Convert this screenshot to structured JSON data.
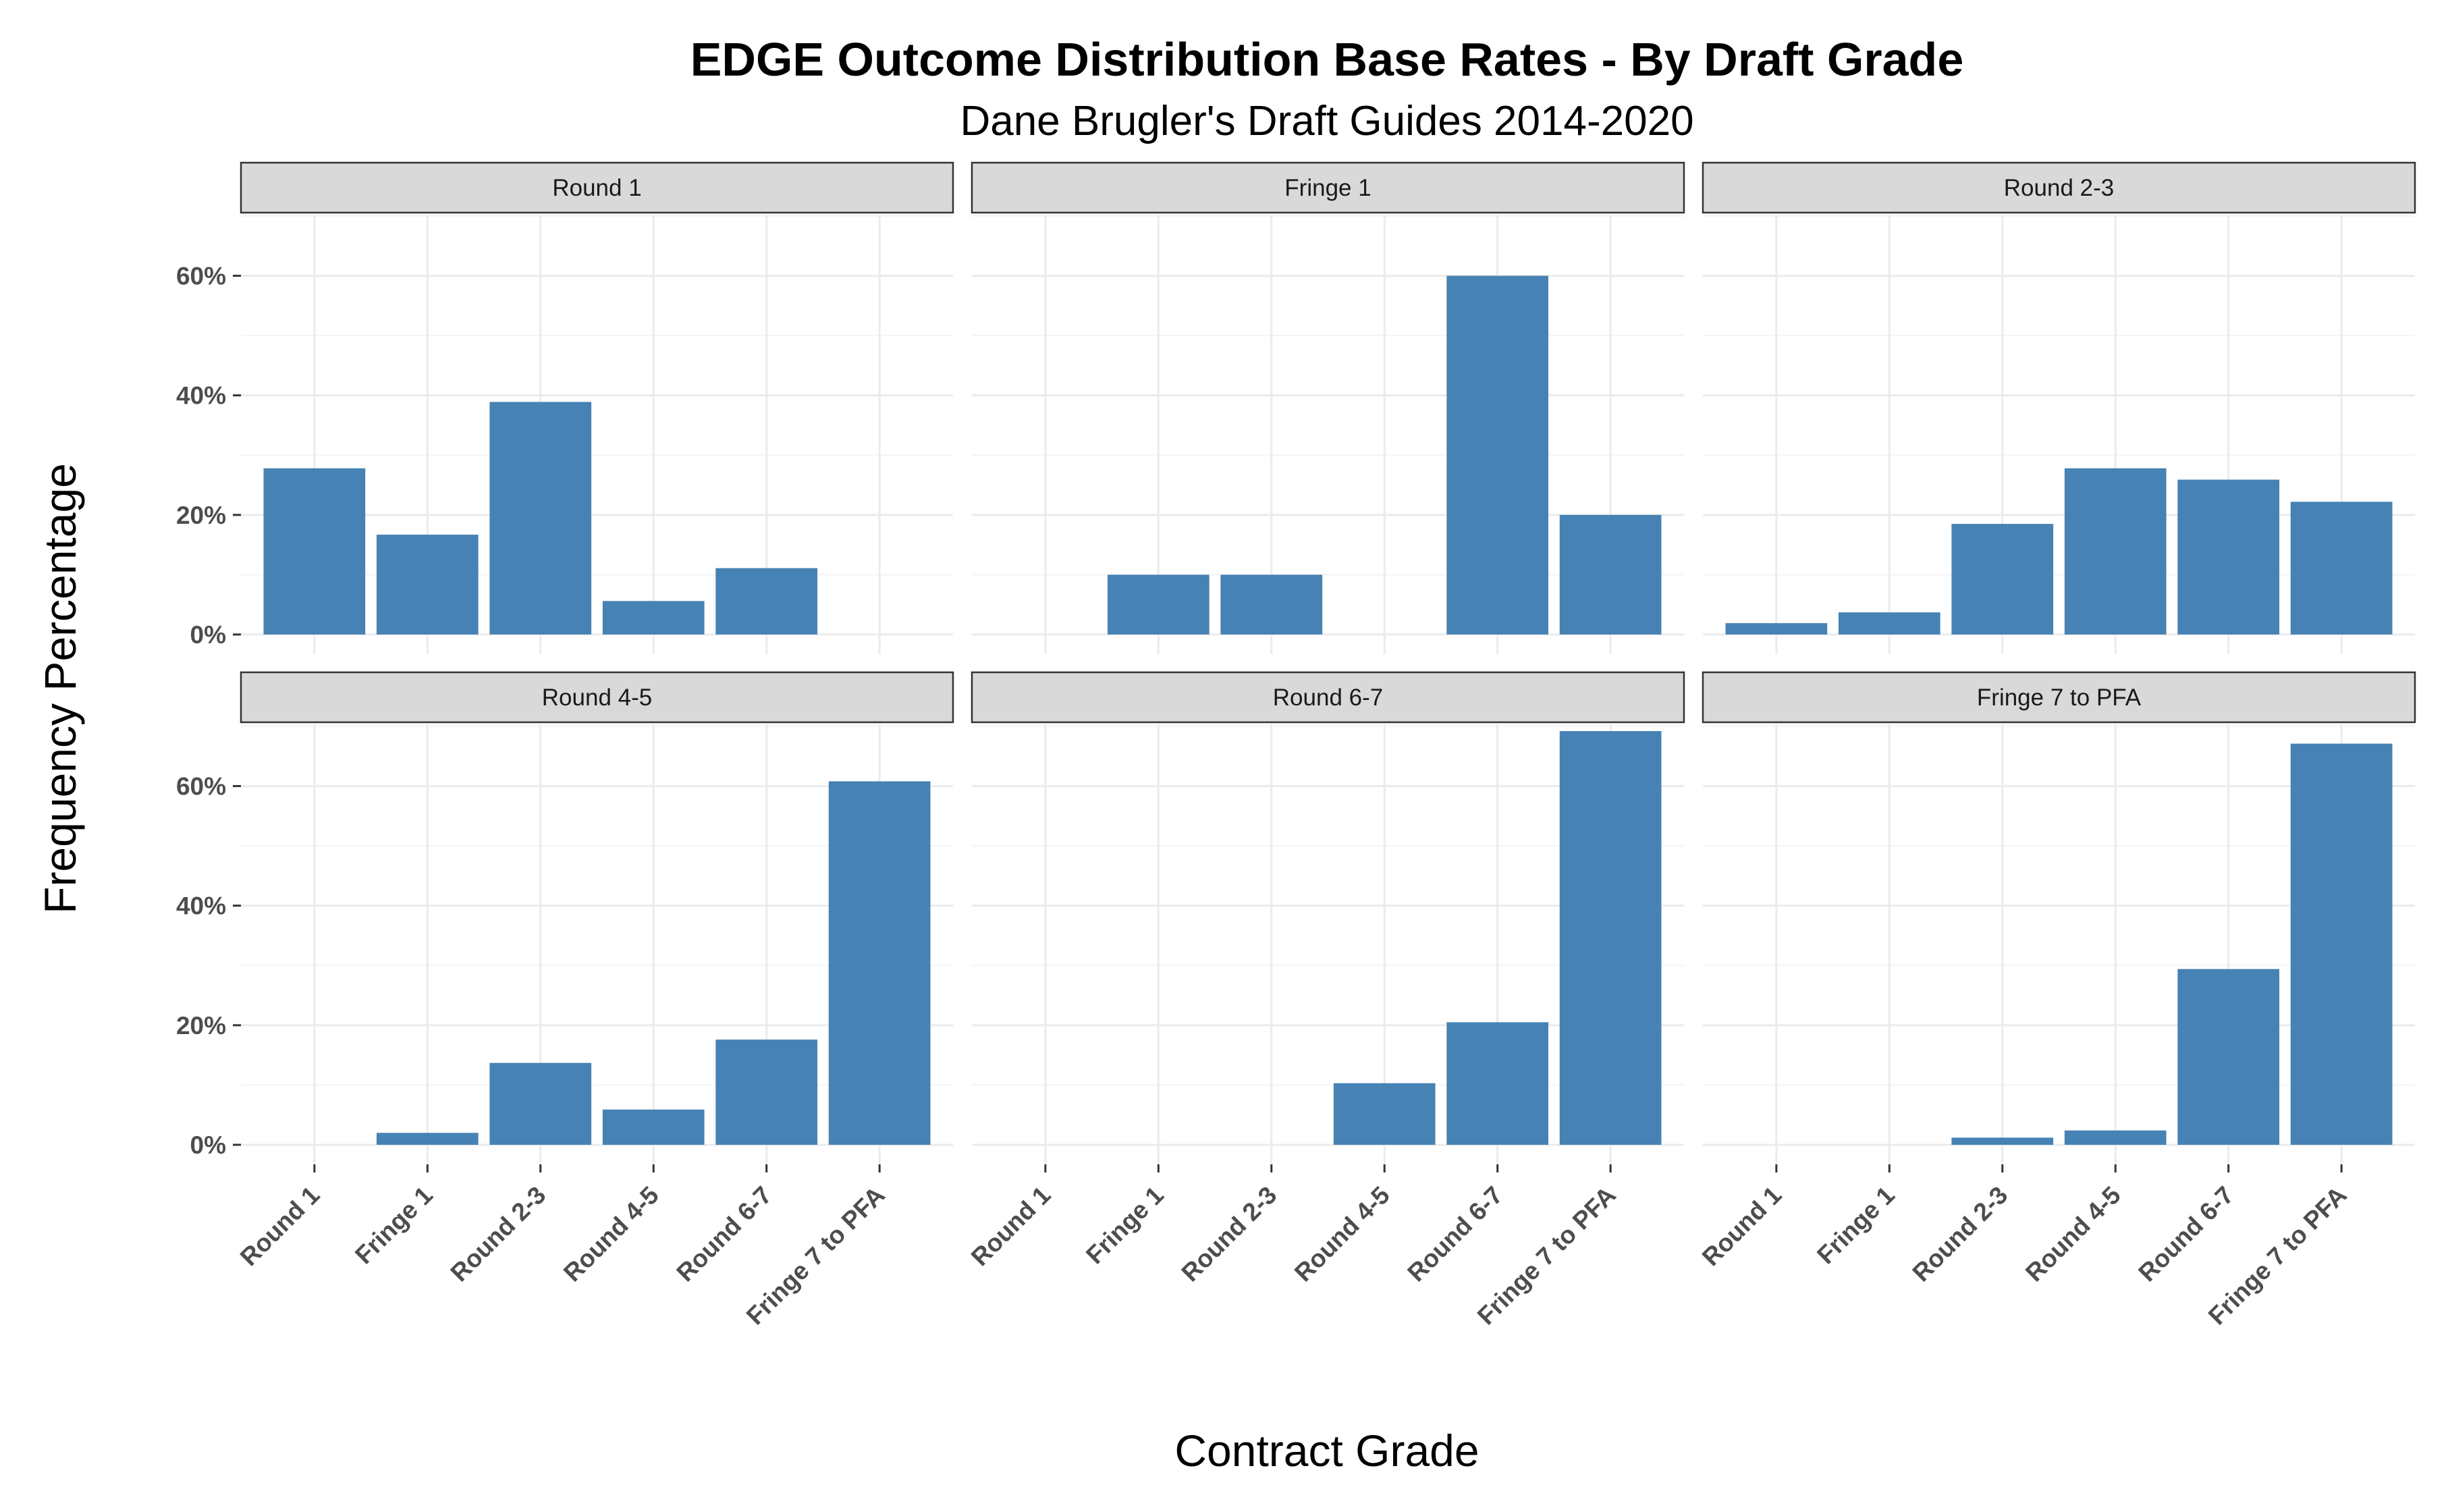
{
  "chart_data": {
    "type": "bar",
    "title": "EDGE Outcome Distribution Base Rates - By Draft Grade",
    "subtitle": "Dane Brugler's Draft Guides 2014-2020",
    "xlabel": "Contract Grade",
    "ylabel": "Frequency Percentage",
    "ylim": [
      0,
      70
    ],
    "yticks": [
      "0%",
      "20%",
      "40%",
      "60%"
    ],
    "categories": [
      "Round 1",
      "Fringe 1",
      "Round 2-3",
      "Round 4-5",
      "Round 6-7",
      "Fringe 7 to PFA"
    ],
    "bar_color": "#4682B4",
    "panels": [
      {
        "name": "Round 1",
        "values": [
          27.8,
          16.7,
          38.9,
          5.6,
          11.1,
          0
        ]
      },
      {
        "name": "Fringe 1",
        "values": [
          0,
          10,
          10,
          0,
          60,
          20
        ]
      },
      {
        "name": "Round 2-3",
        "values": [
          1.9,
          3.7,
          18.5,
          27.8,
          25.9,
          22.2
        ]
      },
      {
        "name": "Round 4-5",
        "values": [
          0,
          2.0,
          13.7,
          5.9,
          17.6,
          60.8
        ]
      },
      {
        "name": "Round 6-7",
        "values": [
          0,
          0,
          0,
          10.3,
          20.5,
          69.2
        ]
      },
      {
        "name": "Fringe 7 to PFA",
        "values": [
          0,
          0,
          1.2,
          2.4,
          29.4,
          67.1
        ]
      }
    ]
  }
}
